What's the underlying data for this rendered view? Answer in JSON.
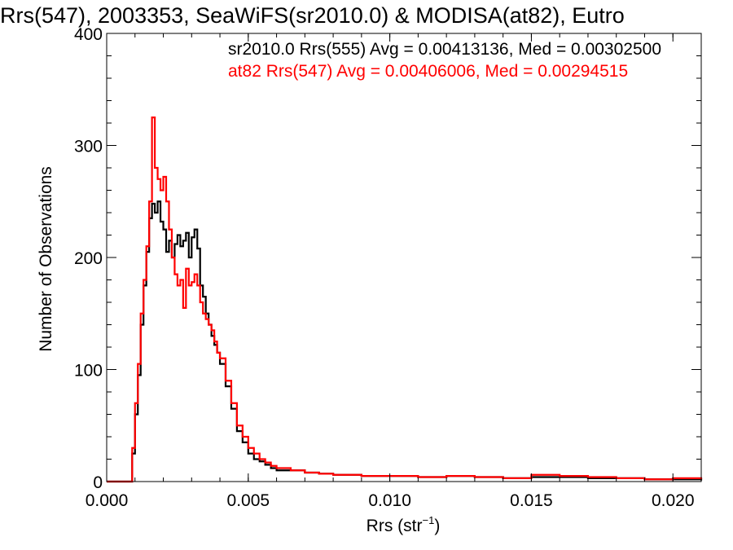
{
  "chart_data": {
    "type": "line",
    "title": "Rrs(547), 2003353, SeaWiFS(sr2010.0) & MODISA(at82), Eutro",
    "xlabel_main": "Rrs (str",
    "xlabel_sup": "−1",
    "xlabel_close": ")",
    "ylabel": "Number of Observations",
    "xlim": [
      0.0,
      0.021
    ],
    "ylim": [
      0,
      400
    ],
    "xticks": [
      {
        "value": 0.0,
        "label": "0.000"
      },
      {
        "value": 0.005,
        "label": "0.005"
      },
      {
        "value": 0.01,
        "label": "0.010"
      },
      {
        "value": 0.015,
        "label": "0.015"
      },
      {
        "value": 0.02,
        "label": "0.020"
      }
    ],
    "yticks": [
      {
        "value": 0,
        "label": "0"
      },
      {
        "value": 100,
        "label": "100"
      },
      {
        "value": 200,
        "label": "200"
      },
      {
        "value": 300,
        "label": "300"
      },
      {
        "value": 400,
        "label": "400"
      }
    ],
    "xminor_step": 0.001,
    "yminor_step": 20,
    "legend_position": "top-right",
    "series": [
      {
        "name": "sr2010.0 Rrs(555) Avg = 0.00413136, Med = 0.00302500",
        "color": "#000000",
        "x": [
          0.0008,
          0.0009,
          0.001,
          0.0011,
          0.0012,
          0.0013,
          0.0014,
          0.0015,
          0.0016,
          0.0017,
          0.0018,
          0.0019,
          0.002,
          0.0021,
          0.0022,
          0.0023,
          0.0024,
          0.0025,
          0.0026,
          0.0027,
          0.0028,
          0.0029,
          0.003,
          0.0031,
          0.0032,
          0.0033,
          0.0034,
          0.0035,
          0.0036,
          0.0037,
          0.0038,
          0.0039,
          0.004,
          0.0042,
          0.0044,
          0.0046,
          0.0048,
          0.005,
          0.0052,
          0.0054,
          0.0056,
          0.0058,
          0.006,
          0.0065,
          0.007,
          0.0075,
          0.008,
          0.009,
          0.01,
          0.011,
          0.012,
          0.013,
          0.014,
          0.015,
          0.016,
          0.017,
          0.018,
          0.019,
          0.02,
          0.021
        ],
        "y": [
          0,
          25,
          60,
          95,
          140,
          175,
          205,
          235,
          248,
          240,
          250,
          232,
          225,
          205,
          215,
          200,
          212,
          220,
          210,
          215,
          222,
          200,
          218,
          225,
          208,
          175,
          165,
          150,
          140,
          130,
          122,
          115,
          105,
          85,
          65,
          45,
          35,
          25,
          20,
          18,
          15,
          12,
          10,
          10,
          8,
          7,
          6,
          5,
          5,
          4,
          5,
          4,
          3,
          4,
          4,
          3,
          3,
          2,
          2,
          1
        ]
      },
      {
        "name": "at82 Rrs(547) Avg = 0.00406006, Med = 0.00294515",
        "color": "#ff0000",
        "x": [
          0.0008,
          0.0009,
          0.001,
          0.0011,
          0.0012,
          0.0013,
          0.0014,
          0.0015,
          0.0016,
          0.0017,
          0.0018,
          0.0019,
          0.002,
          0.0021,
          0.0022,
          0.0023,
          0.0024,
          0.0025,
          0.0026,
          0.0027,
          0.0028,
          0.0029,
          0.003,
          0.0031,
          0.0032,
          0.0033,
          0.0034,
          0.0035,
          0.0036,
          0.0037,
          0.0038,
          0.0039,
          0.004,
          0.0042,
          0.0044,
          0.0046,
          0.0048,
          0.005,
          0.0052,
          0.0054,
          0.0056,
          0.0058,
          0.006,
          0.0065,
          0.007,
          0.0075,
          0.008,
          0.009,
          0.01,
          0.011,
          0.012,
          0.013,
          0.014,
          0.015,
          0.016,
          0.017,
          0.018,
          0.019,
          0.02,
          0.021
        ],
        "y": [
          0,
          30,
          70,
          105,
          150,
          180,
          210,
          250,
          325,
          280,
          270,
          260,
          272,
          250,
          225,
          200,
          185,
          175,
          180,
          155,
          190,
          175,
          178,
          185,
          175,
          160,
          150,
          145,
          140,
          135,
          125,
          115,
          110,
          90,
          70,
          50,
          40,
          30,
          25,
          20,
          17,
          14,
          12,
          10,
          8,
          7,
          6,
          5,
          5,
          4,
          5,
          4,
          3,
          6,
          5,
          4,
          3,
          2,
          3,
          2
        ]
      }
    ]
  }
}
